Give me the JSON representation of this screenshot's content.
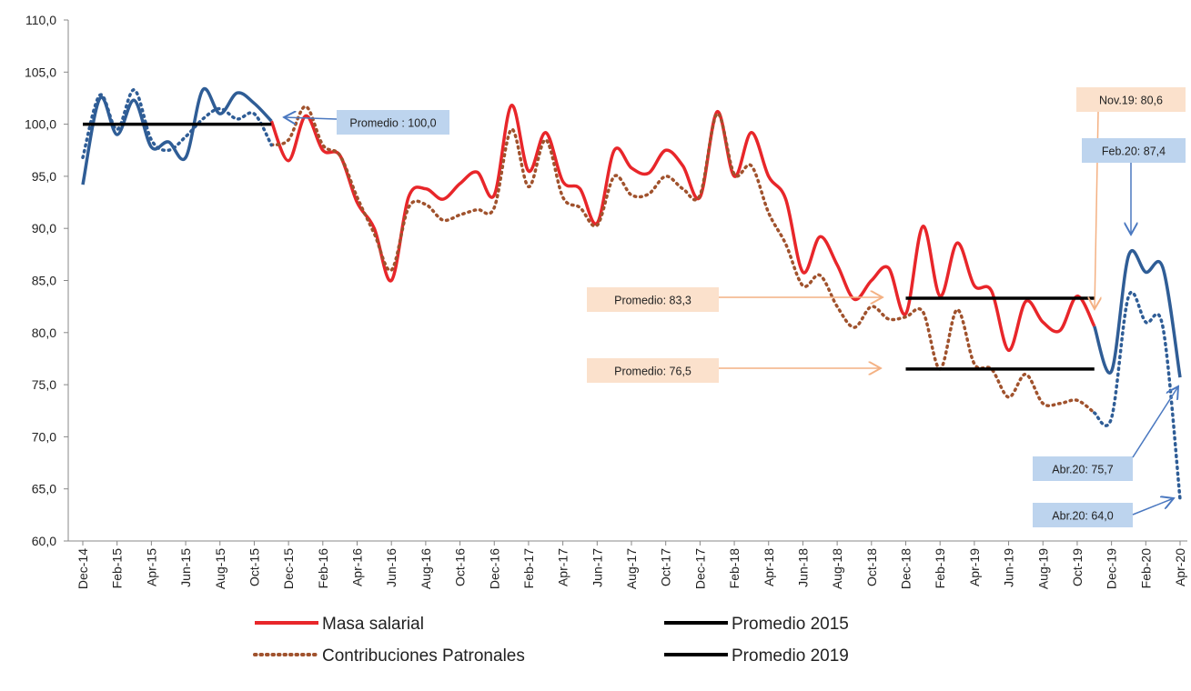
{
  "chart_data": {
    "type": "line",
    "categories": [
      "Dec-14",
      null,
      "Feb-15",
      null,
      "Apr-15",
      null,
      "Jun-15",
      null,
      "Aug-15",
      null,
      "Oct-15",
      null,
      "Dec-15",
      null,
      "Feb-16",
      null,
      "Apr-16",
      null,
      "Jun-16",
      null,
      "Aug-16",
      null,
      "Oct-16",
      null,
      "Dec-16",
      null,
      "Feb-17",
      null,
      "Apr-17",
      null,
      "Jun-17",
      null,
      "Aug-17",
      null,
      "Oct-17",
      null,
      "Dec-17",
      null,
      "Feb-18",
      null,
      "Apr-18",
      null,
      "Jun-18",
      null,
      "Aug-18",
      null,
      "Oct-18",
      null,
      "Dec-18",
      null,
      "Feb-19",
      null,
      "Apr-19",
      null,
      "Jun-19",
      null,
      "Aug-19",
      null,
      "Oct-19",
      null,
      "Dec-19",
      null,
      "Feb-20",
      null,
      "Apr-20"
    ],
    "ylim": [
      60,
      110
    ],
    "yticks": [
      {
        "value": 60,
        "label": "60,0"
      },
      {
        "value": 65,
        "label": "65,0"
      },
      {
        "value": 70,
        "label": "70,0"
      },
      {
        "value": 75,
        "label": "75,0"
      },
      {
        "value": 80,
        "label": "80,0"
      },
      {
        "value": 85,
        "label": "85,0"
      },
      {
        "value": 90,
        "label": "90,0"
      },
      {
        "value": 95,
        "label": "95,0"
      },
      {
        "value": 100,
        "label": "100,0"
      },
      {
        "value": 105,
        "label": "105,0"
      },
      {
        "value": 110,
        "label": "110,0"
      }
    ],
    "grid": false,
    "series": [
      {
        "name": "Masa salarial",
        "color": "#e8262a",
        "dash": "solid",
        "values": [
          null,
          null,
          null,
          null,
          null,
          null,
          null,
          null,
          null,
          null,
          null,
          100.3,
          96.5,
          100.8,
          97.5,
          97.0,
          92.5,
          90.0,
          85.0,
          93.0,
          93.8,
          92.8,
          94.3,
          95.4,
          93.2,
          101.8,
          95.5,
          99.2,
          94.5,
          93.8,
          90.5,
          97.5,
          95.8,
          95.3,
          97.5,
          96.0,
          93.0,
          101.2,
          95.0,
          99.2,
          95.0,
          92.8,
          85.8,
          89.2,
          86.5,
          83.2,
          85.0,
          86.2,
          81.8,
          90.2,
          83.5,
          88.6,
          84.5,
          84.0,
          78.3,
          83.0,
          81.0,
          80.2,
          83.5,
          80.6,
          null,
          null,
          null,
          null,
          null
        ]
      },
      {
        "color": "#2f5d96",
        "dash": "solid",
        "values": [
          94.2,
          102.5,
          99.0,
          102.3,
          97.8,
          98.3,
          96.8,
          103.3,
          101.0,
          103.0,
          102.0,
          100.3,
          null,
          null,
          null,
          null,
          null,
          null,
          null,
          null,
          null,
          null,
          null,
          null,
          null,
          null,
          null,
          null,
          null,
          null,
          null,
          null,
          null,
          null,
          null,
          null,
          null,
          null,
          null,
          null,
          null,
          null,
          null,
          null,
          null,
          null,
          null,
          null,
          null,
          null,
          null,
          null,
          null,
          null,
          null,
          null,
          null,
          null,
          null,
          80.6,
          76.3,
          87.4,
          85.8,
          86.2,
          75.7
        ]
      },
      {
        "name": "Contribuciones Patronales",
        "color": "#a0522d",
        "dash": "dotted",
        "values": [
          null,
          null,
          null,
          null,
          null,
          null,
          null,
          null,
          null,
          null,
          null,
          98.0,
          98.5,
          101.7,
          98.0,
          97.0,
          93.0,
          89.5,
          86.0,
          92.0,
          92.3,
          90.8,
          91.3,
          91.8,
          92.0,
          99.5,
          94.0,
          98.5,
          93.0,
          92.0,
          90.3,
          95.0,
          93.2,
          93.3,
          95.0,
          93.8,
          93.2,
          101.0,
          95.2,
          96.0,
          91.5,
          88.5,
          84.5,
          85.5,
          82.5,
          80.5,
          82.5,
          81.3,
          81.5,
          82.0,
          76.5,
          82.2,
          77.0,
          76.5,
          73.8,
          76.0,
          73.2,
          73.2,
          73.5,
          72.3,
          null,
          null,
          null,
          null,
          null
        ]
      },
      {
        "color": "#2f5d96",
        "dash": "dotted",
        "values": [
          96.8,
          102.8,
          99.5,
          103.3,
          98.5,
          97.5,
          98.8,
          100.5,
          101.5,
          100.5,
          101.0,
          98.0,
          null,
          null,
          null,
          null,
          null,
          null,
          null,
          null,
          null,
          null,
          null,
          null,
          null,
          null,
          null,
          null,
          null,
          null,
          null,
          null,
          null,
          null,
          null,
          null,
          null,
          null,
          null,
          null,
          null,
          null,
          null,
          null,
          null,
          null,
          null,
          null,
          null,
          null,
          null,
          null,
          null,
          null,
          null,
          null,
          null,
          null,
          null,
          72.3,
          71.8,
          83.5,
          81.0,
          80.5,
          64.0
        ]
      },
      {
        "name": "Promedio 2015",
        "color": "#000000",
        "dash": "solid",
        "values": [
          100,
          100,
          100,
          100,
          100,
          100,
          100,
          100,
          100,
          100,
          100,
          100,
          null,
          null,
          null,
          null,
          null,
          null,
          null,
          null,
          null,
          null,
          null,
          null,
          null,
          null,
          null,
          null,
          null,
          null,
          null,
          null,
          null,
          null,
          null,
          null,
          null,
          null,
          null,
          null,
          null,
          null,
          null,
          null,
          null,
          null,
          null,
          null,
          null,
          null,
          null,
          null,
          null,
          null,
          null,
          null,
          null,
          null,
          null,
          null,
          null,
          null,
          null,
          null,
          null
        ]
      },
      {
        "name": "Promedio 2019",
        "color": "#000000",
        "dash": "solid",
        "values": [
          null,
          null,
          null,
          null,
          null,
          null,
          null,
          null,
          null,
          null,
          null,
          null,
          null,
          null,
          null,
          null,
          null,
          null,
          null,
          null,
          null,
          null,
          null,
          null,
          null,
          null,
          null,
          null,
          null,
          null,
          null,
          null,
          null,
          null,
          null,
          null,
          null,
          null,
          null,
          null,
          null,
          null,
          null,
          null,
          null,
          null,
          null,
          null,
          83.3,
          83.3,
          83.3,
          83.3,
          83.3,
          83.3,
          83.3,
          83.3,
          83.3,
          83.3,
          83.3,
          83.3,
          null,
          null,
          null,
          null,
          null
        ]
      },
      {
        "color": "#000000",
        "dash": "solid",
        "values": [
          null,
          null,
          null,
          null,
          null,
          null,
          null,
          null,
          null,
          null,
          null,
          null,
          null,
          null,
          null,
          null,
          null,
          null,
          null,
          null,
          null,
          null,
          null,
          null,
          null,
          null,
          null,
          null,
          null,
          null,
          null,
          null,
          null,
          null,
          null,
          null,
          null,
          null,
          null,
          null,
          null,
          null,
          null,
          null,
          null,
          null,
          null,
          null,
          76.5,
          76.5,
          76.5,
          76.5,
          76.5,
          76.5,
          76.5,
          76.5,
          76.5,
          76.5,
          76.5,
          76.5,
          null,
          null,
          null,
          null,
          null
        ]
      }
    ],
    "annotations": [
      {
        "text": "Promedio : 100,0",
        "color": "#bdd4ee"
      },
      {
        "text": "Promedio: 83,3",
        "color": "#fbe1cc"
      },
      {
        "text": "Promedio: 76,5",
        "color": "#fbe1cc"
      },
      {
        "text": "Nov.19: 80,6",
        "color": "#fbe1cc"
      },
      {
        "text": "Feb.20: 87,4",
        "color": "#bdd4ee"
      },
      {
        "text": "Abr.20: 75,7",
        "color": "#bdd4ee"
      },
      {
        "text": "Abr.20: 64,0",
        "color": "#bdd4ee"
      }
    ]
  }
}
